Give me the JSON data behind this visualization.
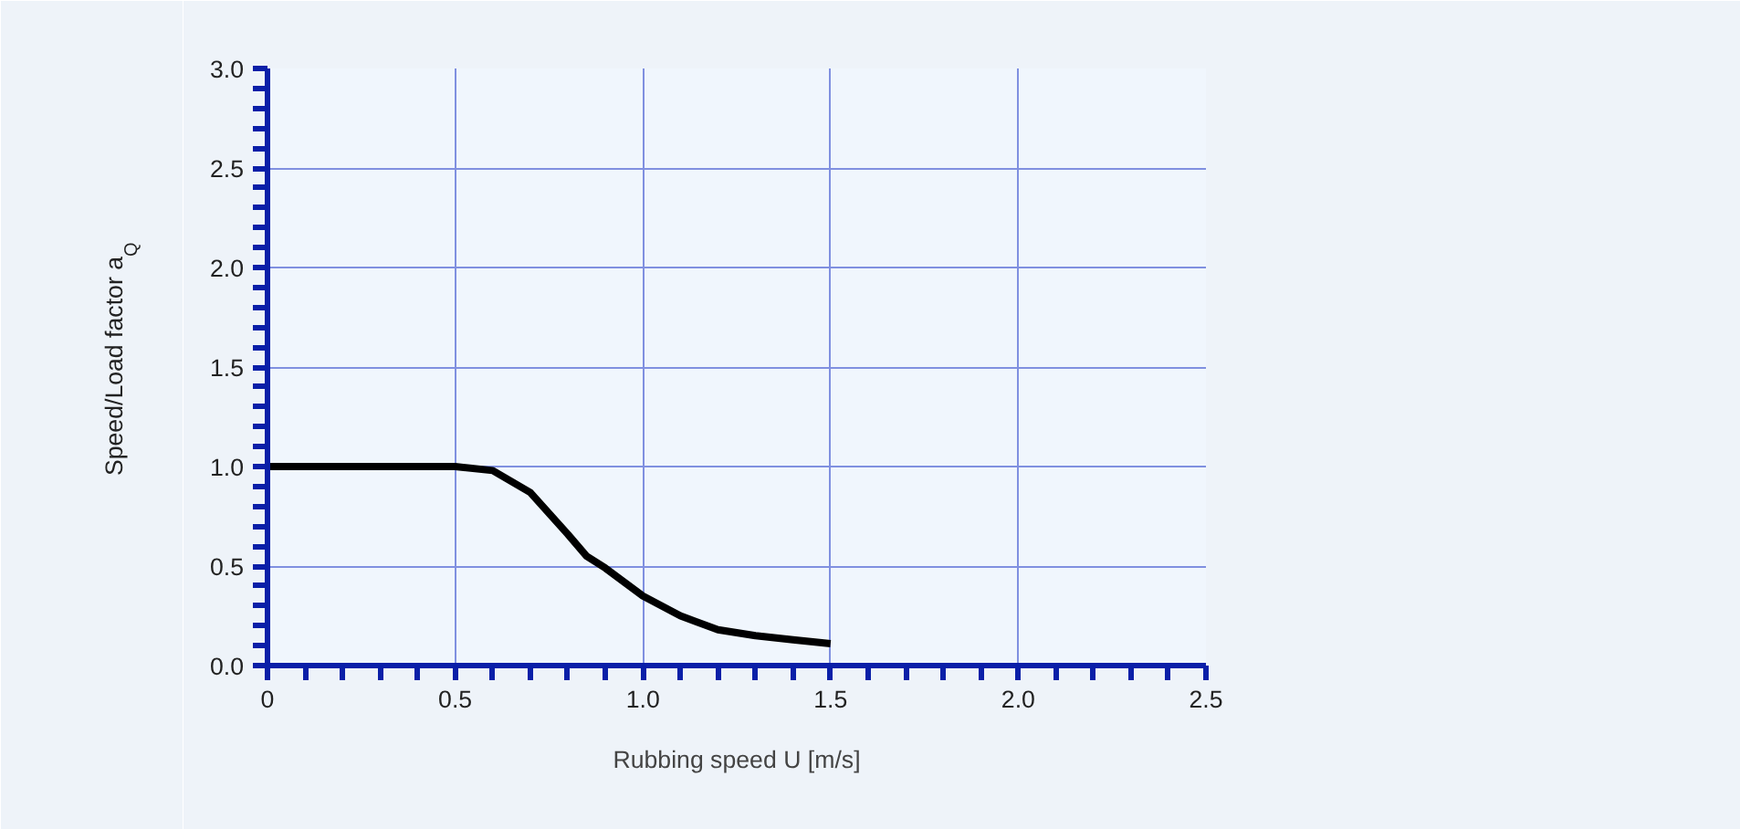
{
  "chart_data": {
    "type": "line",
    "xlabel": "Rubbing speed U [m/s]",
    "ylabel": "Speed/Load factor a$_{Q}$",
    "series": [
      {
        "color": "#000000",
        "x": [
          0,
          0.5,
          0.6,
          0.7,
          0.8,
          0.85,
          0.9,
          1.0,
          1.1,
          1.2,
          1.3,
          1.4,
          1.5
        ],
        "values": [
          1.0,
          1.0,
          0.98,
          0.87,
          0.66,
          0.55,
          0.49,
          0.35,
          0.25,
          0.18,
          0.15,
          0.13,
          0.11
        ]
      }
    ],
    "xlim": [
      0,
      2.5
    ],
    "ylim": [
      0,
      3.0
    ],
    "xticks": [
      0,
      0.5,
      {
        "value": 1,
        "label": "1.0"
      },
      1.5,
      {
        "value": 2,
        "label": "2.0"
      },
      2.5
    ],
    "yticks": [
      {
        "value": 0,
        "label": "0.0"
      },
      0.5,
      {
        "value": 1,
        "label": "1.0"
      },
      1.5,
      {
        "value": 2,
        "label": "2.0"
      },
      2.5,
      {
        "value": 3,
        "label": "3.0"
      }
    ],
    "grid": true,
    "marker": "none",
    "line_style": "solid"
  }
}
